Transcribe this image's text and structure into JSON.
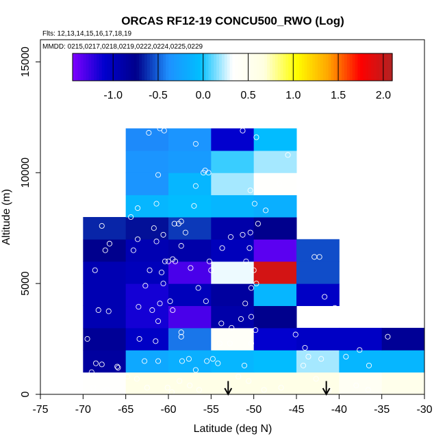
{
  "chart_data": {
    "type": "heatmap",
    "title": "ORCAS RF12-19 CONCU500_RWO (Log)",
    "flights_note": "Flts: 12,13,14,15,16,17,18,19",
    "dates_note": "MMDD: 0215,0217,0218,0219,0222,0224,0225,0229",
    "xlabel": "Latitude (deg N)",
    "ylabel": "Altitude (m)",
    "xlim": [
      -75,
      -30
    ],
    "ylim": [
      0,
      16000
    ],
    "x_ticks": [
      -75,
      -70,
      -65,
      -60,
      -55,
      -50,
      -45,
      -40,
      -35,
      -30
    ],
    "y_ticks": [
      0,
      5000,
      10000,
      15000
    ],
    "x_tick_labels": [
      "-75",
      "-70",
      "-65",
      "-60",
      "-55",
      "-50",
      "-45",
      "-40",
      "-35",
      "-30"
    ],
    "y_tick_labels": [
      "0",
      "5000",
      "10000",
      "15000"
    ],
    "colorbar": {
      "min": -1.45,
      "max": 2.1,
      "ticks": [
        -1.0,
        -0.5,
        0.0,
        0.5,
        1.0,
        1.5,
        2.0
      ],
      "tick_labels": [
        "-1.0",
        "-0.5",
        "0.0",
        "0.5",
        "1.0",
        "1.5",
        "2.0"
      ],
      "colors": [
        "#7f00ff",
        "#0000cd",
        "#00008b",
        "#1e90ff",
        "#00bfff",
        "#ffffff",
        "#ffffe0",
        "#ffff00",
        "#ffa500",
        "#ff0000",
        "#b22222"
      ]
    },
    "grid": {
      "lat_edges": [
        -70,
        -65,
        -60,
        -55,
        -50,
        -45,
        -40,
        -35
      ],
      "alt_step": 1000,
      "cells": [
        {
          "lat0": -70,
          "alt0": 0,
          "value": 0.35
        },
        {
          "lat0": -65,
          "alt0": 0,
          "value": 0.6
        },
        {
          "lat0": -60,
          "alt0": 0,
          "value": 0.6
        },
        {
          "lat0": -55,
          "alt0": 0,
          "value": 0.6
        },
        {
          "lat0": -50,
          "alt0": 0,
          "value": 0.6
        },
        {
          "lat0": -45,
          "alt0": 0,
          "value": 0.6
        },
        {
          "lat0": -40,
          "alt0": 0,
          "value": 0.45
        },
        {
          "lat0": -35,
          "alt0": 0,
          "value": 0.55
        },
        {
          "lat0": -70,
          "alt0": 1000,
          "value": -0.85
        },
        {
          "lat0": -65,
          "alt0": 1000,
          "value": -0.2
        },
        {
          "lat0": -60,
          "alt0": 1000,
          "value": -0.15
        },
        {
          "lat0": -55,
          "alt0": 1000,
          "value": -0.1
        },
        {
          "lat0": -50,
          "alt0": 1000,
          "value": -0.05
        },
        {
          "lat0": -45,
          "alt0": 1000,
          "value": 0.2
        },
        {
          "lat0": -40,
          "alt0": 1000,
          "value": -0.1
        },
        {
          "lat0": -35,
          "alt0": 1000,
          "value": -0.1
        },
        {
          "lat0": -70,
          "alt0": 2000,
          "value": -0.8
        },
        {
          "lat0": -65,
          "alt0": 2000,
          "value": -1.05
        },
        {
          "lat0": -60,
          "alt0": 2000,
          "value": -0.45
        },
        {
          "lat0": -55,
          "alt0": 2000,
          "value": 0.4
        },
        {
          "lat0": -50,
          "alt0": 2000,
          "value": -1.1
        },
        {
          "lat0": -45,
          "alt0": 2000,
          "value": -1.05
        },
        {
          "lat0": -40,
          "alt0": 2000,
          "value": -1.05
        },
        {
          "lat0": -35,
          "alt0": 2000,
          "value": -0.8
        },
        {
          "lat0": -70,
          "alt0": 3000,
          "value": -0.95
        },
        {
          "lat0": -65,
          "alt0": 3000,
          "value": -1.15
        },
        {
          "lat0": -60,
          "alt0": 3000,
          "value": -1.3
        },
        {
          "lat0": -55,
          "alt0": 3000,
          "value": -0.9
        },
        {
          "lat0": -50,
          "alt0": 3000,
          "value": -0.75
        },
        {
          "lat0": -70,
          "alt0": 4000,
          "value": -0.95
        },
        {
          "lat0": -65,
          "alt0": 4000,
          "value": -1.15
        },
        {
          "lat0": -60,
          "alt0": 4000,
          "value": -1.0
        },
        {
          "lat0": -55,
          "alt0": 4000,
          "value": -0.85
        },
        {
          "lat0": -50,
          "alt0": 4000,
          "value": -0.1
        },
        {
          "lat0": -45,
          "alt0": 4000,
          "value": -1.05
        },
        {
          "lat0": -70,
          "alt0": 5000,
          "value": -0.95
        },
        {
          "lat0": -65,
          "alt0": 5000,
          "value": -1.0
        },
        {
          "lat0": -60,
          "alt0": 5000,
          "value": -1.3
        },
        {
          "lat0": -55,
          "alt0": 5000,
          "value": 0.3
        },
        {
          "lat0": -50,
          "alt0": 5000,
          "value": 1.95
        },
        {
          "lat0": -45,
          "alt0": 5000,
          "value": -0.55
        },
        {
          "lat0": -70,
          "alt0": 6000,
          "value": -0.75
        },
        {
          "lat0": -65,
          "alt0": 6000,
          "value": -0.95
        },
        {
          "lat0": -60,
          "alt0": 6000,
          "value": -0.9
        },
        {
          "lat0": -55,
          "alt0": 6000,
          "value": -1.0
        },
        {
          "lat0": -50,
          "alt0": 6000,
          "value": -1.35
        },
        {
          "lat0": -45,
          "alt0": 6000,
          "value": -0.55
        },
        {
          "lat0": -70,
          "alt0": 7000,
          "value": -0.65
        },
        {
          "lat0": -65,
          "alt0": 7000,
          "value": -0.7
        },
        {
          "lat0": -60,
          "alt0": 7000,
          "value": -0.6
        },
        {
          "lat0": -55,
          "alt0": 7000,
          "value": -0.9
        },
        {
          "lat0": -50,
          "alt0": 7000,
          "value": -0.75
        },
        {
          "lat0": -65,
          "alt0": 8000,
          "value": -0.1
        },
        {
          "lat0": -60,
          "alt0": 8000,
          "value": -0.05
        },
        {
          "lat0": -55,
          "alt0": 8000,
          "value": -0.1
        },
        {
          "lat0": -50,
          "alt0": 8000,
          "value": -0.15
        },
        {
          "lat0": -65,
          "alt0": 9000,
          "value": -0.35
        },
        {
          "lat0": -60,
          "alt0": 9000,
          "value": -0.1
        },
        {
          "lat0": -55,
          "alt0": 9000,
          "value": 0.2
        },
        {
          "lat0": -50,
          "alt0": 9000,
          "value": 0.35
        },
        {
          "lat0": -65,
          "alt0": 10000,
          "value": -0.35
        },
        {
          "lat0": -60,
          "alt0": 10000,
          "value": -0.3
        },
        {
          "lat0": -55,
          "alt0": 10000,
          "value": 0.05
        },
        {
          "lat0": -50,
          "alt0": 10000,
          "value": 0.2
        },
        {
          "lat0": -65,
          "alt0": 11000,
          "value": -0.4
        },
        {
          "lat0": -60,
          "alt0": 11000,
          "value": -0.35
        },
        {
          "lat0": -55,
          "alt0": 11000,
          "value": -1.1
        },
        {
          "lat0": -50,
          "alt0": 11000,
          "value": -0.05
        }
      ]
    },
    "observations": [
      [
        -67.5,
        150
      ],
      [
        -67.2,
        200
      ],
      [
        -68.8,
        300
      ],
      [
        -69,
        1000
      ],
      [
        -68.5,
        1400
      ],
      [
        -67.8,
        1350
      ],
      [
        -66,
        1250
      ],
      [
        -69.5,
        2500
      ],
      [
        -68.2,
        3800
      ],
      [
        -67,
        3750
      ],
      [
        -68.6,
        5600
      ],
      [
        -67.4,
        6500
      ],
      [
        -66.9,
        6800
      ],
      [
        -67.8,
        7600
      ],
      [
        -64.1,
        6500
      ],
      [
        -63.6,
        7000
      ],
      [
        -64.4,
        8000
      ],
      [
        -63.6,
        8400
      ],
      [
        -62.2,
        5600
      ],
      [
        -62.7,
        4900
      ],
      [
        -61.9,
        3800
      ],
      [
        -63.5,
        3950
      ],
      [
        -63.4,
        2500
      ],
      [
        -62.8,
        1500
      ],
      [
        -61.5,
        2400
      ],
      [
        -61.2,
        3300
      ],
      [
        -61,
        4100
      ],
      [
        -60.6,
        5000
      ],
      [
        -60.8,
        5500
      ],
      [
        -60.4,
        6000
      ],
      [
        -61.4,
        6900
      ],
      [
        -61.7,
        7500
      ],
      [
        -61.4,
        8600
      ],
      [
        -60.6,
        7200
      ],
      [
        -60,
        6000
      ],
      [
        -59.5,
        6100
      ],
      [
        -59.2,
        6000
      ],
      [
        -58.5,
        6700
      ],
      [
        -58,
        7300
      ],
      [
        -59.3,
        7700
      ],
      [
        -58.8,
        7700
      ],
      [
        -58.5,
        7800
      ],
      [
        -57,
        8500
      ],
      [
        -56.8,
        9400
      ],
      [
        -55.9,
        10000
      ],
      [
        -55.7,
        10100
      ],
      [
        -55.3,
        10000
      ],
      [
        -56.8,
        11300
      ],
      [
        -61,
        12000
      ],
      [
        -60.5,
        11900
      ],
      [
        -62.3,
        11800
      ],
      [
        -61.2,
        9900
      ],
      [
        -59.8,
        4200
      ],
      [
        -59.5,
        3800
      ],
      [
        -58.5,
        2800
      ],
      [
        -58.5,
        2600
      ],
      [
        -58.4,
        1500
      ],
      [
        -57.6,
        1600
      ],
      [
        -56.8,
        1100
      ],
      [
        -55.5,
        1500
      ],
      [
        -54.2,
        1400
      ],
      [
        -54,
        2300
      ],
      [
        -52.8,
        2300
      ],
      [
        -53.8,
        3200
      ],
      [
        -52.6,
        3000
      ],
      [
        -51.5,
        3400
      ],
      [
        -51,
        4100
      ],
      [
        -50.3,
        3500
      ],
      [
        -49.8,
        2900
      ],
      [
        -50.3,
        2300
      ],
      [
        -51.1,
        1300
      ],
      [
        -50.6,
        600
      ],
      [
        -51.8,
        800
      ],
      [
        -54.8,
        1600
      ],
      [
        -55.6,
        4200
      ],
      [
        -56.5,
        4800
      ],
      [
        -57.4,
        5700
      ],
      [
        -55.2,
        6000
      ],
      [
        -55,
        5600
      ],
      [
        -53.7,
        6600
      ],
      [
        -52.7,
        7100
      ],
      [
        -51.3,
        7200
      ],
      [
        -50.4,
        7300
      ],
      [
        -50.5,
        6600
      ],
      [
        -50.9,
        6000
      ],
      [
        -50,
        5600
      ],
      [
        -49.7,
        5000
      ],
      [
        -50.3,
        4800
      ],
      [
        -49.5,
        7700
      ],
      [
        -48.6,
        8300
      ],
      [
        -47,
        9500
      ],
      [
        -46,
        10800
      ],
      [
        -49.9,
        8600
      ],
      [
        -50.4,
        9200
      ],
      [
        -49.7,
        11600
      ],
      [
        -51.3,
        11900
      ],
      [
        -45.1,
        2700
      ],
      [
        -44,
        2100
      ],
      [
        -43.6,
        1700
      ],
      [
        -42.1,
        1600
      ],
      [
        -42.9,
        6200
      ],
      [
        -42.3,
        6200
      ],
      [
        -41.7,
        4400
      ],
      [
        -40.5,
        3900
      ],
      [
        -39.2,
        1700
      ],
      [
        -37.6,
        2000
      ],
      [
        -36.5,
        1300
      ],
      [
        -36.6,
        200
      ],
      [
        -34.3,
        2600
      ],
      [
        -38.4,
        3200
      ],
      [
        -38,
        400
      ],
      [
        -41.2,
        200
      ],
      [
        -42.7,
        700
      ],
      [
        -44.2,
        1300
      ],
      [
        -46.8,
        300
      ],
      [
        -48.8,
        200
      ],
      [
        -56.4,
        200
      ],
      [
        -57.5,
        400
      ],
      [
        -58.7,
        600
      ],
      [
        -62.5,
        300
      ],
      [
        -63.7,
        700
      ],
      [
        -64.8,
        800
      ],
      [
        -65.9,
        1200
      ],
      [
        -60.1,
        300
      ],
      [
        -59.6,
        100
      ],
      [
        -61.2,
        1500
      ]
    ],
    "arrows": [
      {
        "lat": -53,
        "from_alt": 600,
        "to_alt": 0
      },
      {
        "lat": -41.5,
        "from_alt": 600,
        "to_alt": 0
      }
    ]
  }
}
